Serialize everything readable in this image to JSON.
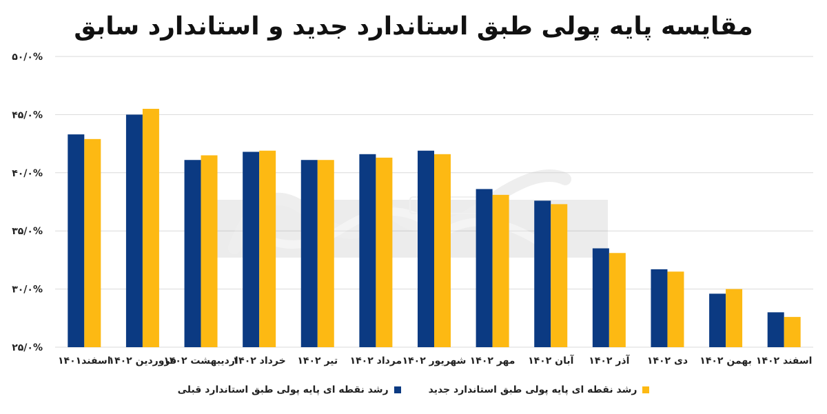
{
  "title": "مقایسه پایه پولی طبق استاندارد جدید و استاندارد سابق",
  "colors": {
    "previous": "#0B3A82",
    "new": "#FDB913",
    "grid": "#d9d9d9",
    "axis_text": "#222222"
  },
  "legend": {
    "new": "رشد نقطه ای پایه پولی طبق استاندارد جدید",
    "previous": "رشد نقطه ای پایه پولی طبق استاندارد قبلی"
  },
  "chart_data": {
    "type": "bar",
    "title": "مقایسه پایه پولی طبق استاندارد جدید و استاندارد سابق",
    "categories": [
      "اسفند۱۴۰۱",
      "فروردین ۱۴۰۲",
      "اردیبهشت ۱۴۰۲",
      "خرداد ۱۴۰۲",
      "تیر ۱۴۰۲",
      "مرداد ۱۴۰۲",
      "شهریور ۱۴۰۲",
      "مهر ۱۴۰۲",
      "آبان ۱۴۰۲",
      "آذر ۱۴۰۲",
      "دی ۱۴۰۲",
      "بهمن ۱۴۰۲",
      "اسفند ۱۴۰۲"
    ],
    "series": [
      {
        "name": "رشد نقطه ای پایه پولی طبق استاندارد قبلی",
        "values": [
          43.3,
          45.0,
          41.1,
          41.8,
          41.1,
          41.6,
          41.9,
          38.6,
          37.6,
          33.5,
          31.7,
          29.6,
          28.0
        ]
      },
      {
        "name": "رشد نقطه ای پایه پولی طبق استاندارد جدید",
        "values": [
          42.9,
          45.5,
          41.5,
          41.9,
          41.1,
          41.3,
          41.6,
          38.1,
          37.3,
          33.1,
          31.5,
          30.0,
          27.6
        ]
      }
    ],
    "yticks": [
      "۲۵/۰%",
      "۳۰/۰%",
      "۳۵/۰%",
      "۴۰/۰%",
      "۴۵/۰%",
      "۵۰/۰%"
    ],
    "ylim": [
      25,
      50
    ],
    "grid": true,
    "legend_position": "bottom"
  }
}
